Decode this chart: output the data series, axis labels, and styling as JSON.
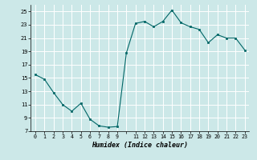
{
  "x": [
    0,
    1,
    2,
    3,
    4,
    5,
    6,
    7,
    8,
    9,
    10,
    11,
    12,
    13,
    14,
    15,
    16,
    17,
    18,
    19,
    20,
    21,
    22,
    23
  ],
  "y": [
    15.5,
    14.8,
    12.8,
    11.0,
    10.0,
    11.2,
    8.8,
    7.8,
    7.6,
    7.7,
    18.8,
    23.2,
    23.5,
    22.7,
    23.5,
    25.2,
    23.3,
    22.7,
    22.3,
    20.3,
    21.5,
    21.0,
    21.0,
    19.2
  ],
  "xlabel": "Humidex (Indice chaleur)",
  "ylim": [
    7,
    26
  ],
  "xlim": [
    -0.5,
    23.5
  ],
  "yticks": [
    7,
    9,
    11,
    13,
    15,
    17,
    19,
    21,
    23,
    25
  ],
  "xtick_labels": [
    "0",
    "1",
    "2",
    "3",
    "4",
    "5",
    "6",
    "7",
    "8",
    "9",
    "",
    "11",
    "12",
    "13",
    "14",
    "15",
    "16",
    "17",
    "18",
    "19",
    "20",
    "21",
    "22",
    "23"
  ],
  "xtick_positions": [
    0,
    1,
    2,
    3,
    4,
    5,
    6,
    7,
    8,
    9,
    10,
    11,
    12,
    13,
    14,
    15,
    16,
    17,
    18,
    19,
    20,
    21,
    22,
    23
  ],
  "line_color": "#006666",
  "marker_color": "#006666",
  "bg_color": "#cce8e8",
  "grid_color": "#ffffff",
  "fig_bg": "#cce8e8"
}
